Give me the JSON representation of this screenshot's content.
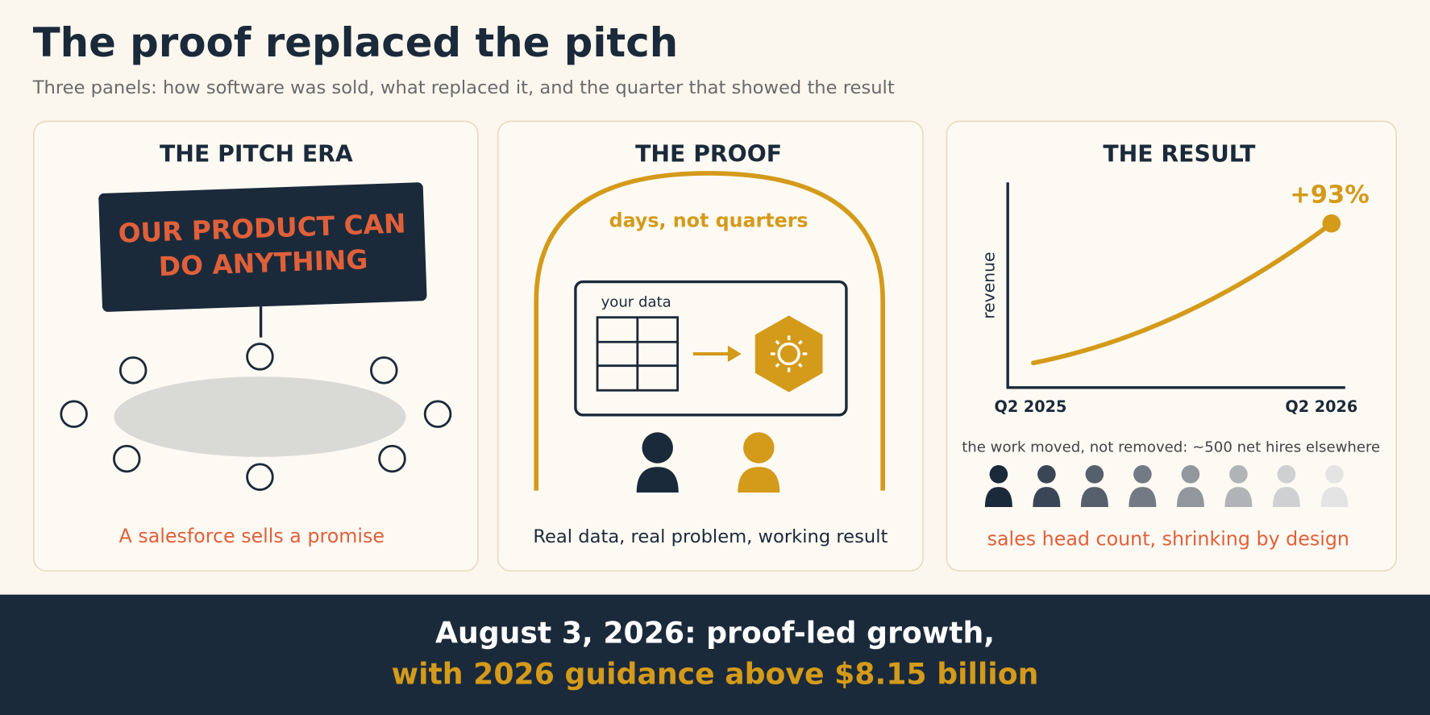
{
  "header": {
    "title": "The proof replaced the pitch",
    "subtitle": "Three panels: how software was sold, what replaced it, and the quarter that showed the result"
  },
  "panels": [
    {
      "title": "THE PITCH ERA",
      "sign": [
        "OUR PRODUCT CAN",
        "DO ANYTHING"
      ],
      "caption": "A salesforce sells a promise"
    },
    {
      "title": "THE PROOF",
      "arch_label": "days, not quarters",
      "box_label": "your data",
      "caption": "Real data, real problem, working result"
    },
    {
      "title": "THE RESULT",
      "y_label": "revenue",
      "x_start": "Q2 2025",
      "x_end": "Q2 2026",
      "annotation": "+93%",
      "note": "the work moved, not removed: ~500 net hires elsewhere",
      "caption": "sales head count, shrinking by design"
    }
  ],
  "footer": {
    "line1": "August 3, 2026: proof-led growth,",
    "line2": "with 2026 guidance above $8.15 billion"
  }
}
